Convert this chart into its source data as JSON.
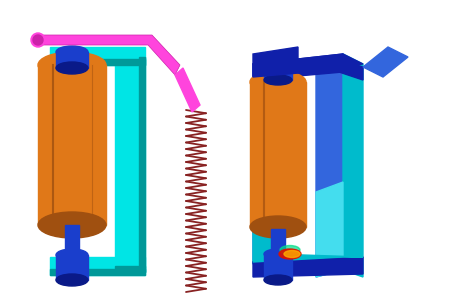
{
  "background_color": "#ffffff",
  "cyan": "#00E5E5",
  "cyan_dark": "#009999",
  "orange": "#E07818",
  "orange_dark": "#A05010",
  "blue": "#1A3ECC",
  "blue_dark": "#0A1A88",
  "magenta": "#FF44DD",
  "magenta_dark": "#CC22AA",
  "spring_color": "#882222",
  "fea_blue_dark": "#1020AA",
  "fea_blue_mid": "#3366DD",
  "fea_cyan": "#00BBCC",
  "fea_cyan_light": "#44DDEE",
  "fea_green": "#00DD88",
  "fea_yellow": "#AADD00",
  "fea_red": "#DD1100"
}
